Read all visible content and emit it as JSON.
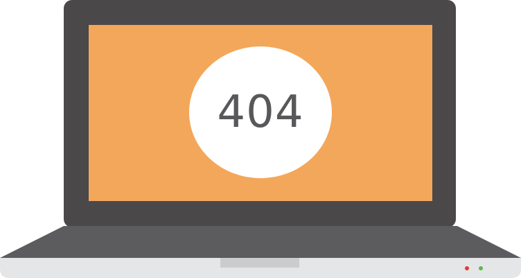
{
  "screen": {
    "error_code": "404"
  },
  "colors": {
    "screen_background": "#f3a75a",
    "bezel": "#4a4849",
    "deck": "#5c5c5e",
    "base": "#e5e6e8",
    "trackpad_notch": "#cbcccd",
    "badge": "#ffffff",
    "led_left": "#e23b2c",
    "led_right": "#5fb84a"
  }
}
